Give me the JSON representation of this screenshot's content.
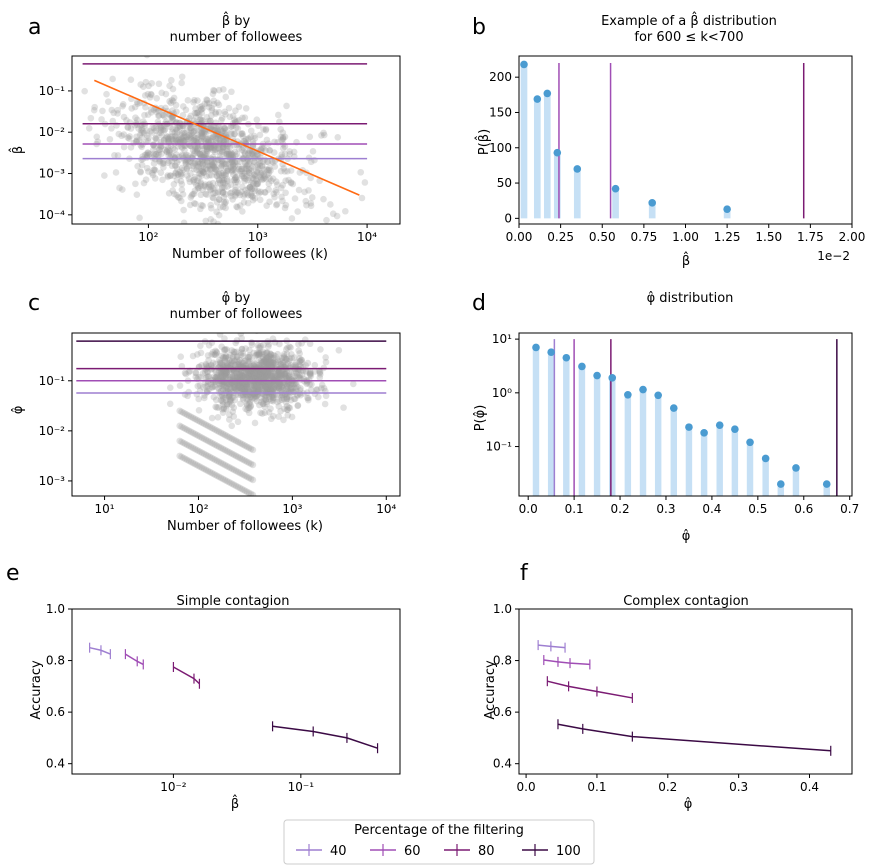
{
  "legend": {
    "title": "Percentage of the filtering",
    "entries": [
      {
        "label": "40",
        "color": "#9e7fd1"
      },
      {
        "label": "60",
        "color": "#a04eb5"
      },
      {
        "label": "80",
        "color": "#7b1b73"
      },
      {
        "label": "100",
        "color": "#3b0a45"
      }
    ]
  },
  "colors": {
    "scatter": "#9a9a9a",
    "fit": "#ff6a13",
    "bar": "#c6e0f5",
    "dot": "#4a9bd1",
    "lines": [
      "#9e7fd1",
      "#a04eb5",
      "#7b1b73",
      "#3b0a45"
    ]
  },
  "chart_data": [
    {
      "id": "a",
      "letter": "a",
      "type": "scatter",
      "title_lines": [
        "β̂ by",
        "number of followees"
      ],
      "xlabel": "Number of followees (k)",
      "ylabel": "β̂",
      "xscale": "log",
      "yscale": "log",
      "xlim": [
        20,
        20000
      ],
      "ylim": [
        6e-05,
        0.7
      ],
      "xticks": [
        {
          "v": 100,
          "label": "10²"
        },
        {
          "v": 1000,
          "label": "10³"
        },
        {
          "v": 10000,
          "label": "10⁴"
        }
      ],
      "yticks": [
        {
          "v": 0.0001,
          "label": "10⁻⁴"
        },
        {
          "v": 0.001,
          "label": "10⁻³"
        },
        {
          "v": 0.01,
          "label": "10⁻²"
        },
        {
          "v": 0.1,
          "label": "10⁻¹"
        }
      ],
      "cloud": {
        "n": 1200,
        "x_log_mean": 2.55,
        "x_log_sd": 0.42,
        "y_log_mean": -2.5,
        "y_log_sd": 0.62,
        "slope": -0.75
      },
      "fit_line": {
        "x": [
          32,
          8500
        ],
        "y": [
          0.18,
          0.0003
        ]
      },
      "hlines": [
        {
          "y": 0.45,
          "x": [
            25,
            10000
          ],
          "color_index": 2
        },
        {
          "y": 0.016,
          "x": [
            25,
            10000
          ],
          "color_index": 2
        },
        {
          "y": 0.0052,
          "x": [
            25,
            10000
          ],
          "color_index": 1
        },
        {
          "y": 0.0023,
          "x": [
            25,
            10000
          ],
          "color_index": 0
        }
      ]
    },
    {
      "id": "b",
      "letter": "b",
      "type": "bar",
      "title_lines": [
        "Example of a β̂ distribution",
        "for 600 ≤ k<700"
      ],
      "xlabel": "β̂",
      "ylabel": "P(β̂)",
      "xlim": [
        0,
        0.02
      ],
      "ylim": [
        -8,
        230
      ],
      "offset_label": "1e−2",
      "xticks": [
        {
          "v": 0,
          "label": "0.00"
        },
        {
          "v": 0.0025,
          "label": "0.25"
        },
        {
          "v": 0.005,
          "label": "0.50"
        },
        {
          "v": 0.0075,
          "label": "0.75"
        },
        {
          "v": 0.01,
          "label": "1.00"
        },
        {
          "v": 0.0125,
          "label": "1.25"
        },
        {
          "v": 0.015,
          "label": "1.50"
        },
        {
          "v": 0.0175,
          "label": "1.75"
        },
        {
          "v": 0.02,
          "label": "2.00"
        }
      ],
      "yticks": [
        {
          "v": 0,
          "label": "0"
        },
        {
          "v": 50,
          "label": "50"
        },
        {
          "v": 100,
          "label": "100"
        },
        {
          "v": 150,
          "label": "150"
        },
        {
          "v": 200,
          "label": "200"
        }
      ],
      "bar_width": 0.0004,
      "points": [
        {
          "x": 0.0003,
          "y": 218
        },
        {
          "x": 0.0011,
          "y": 169
        },
        {
          "x": 0.0017,
          "y": 177
        },
        {
          "x": 0.0023,
          "y": 93
        },
        {
          "x": 0.0035,
          "y": 70
        },
        {
          "x": 0.0058,
          "y": 42
        },
        {
          "x": 0.008,
          "y": 22
        },
        {
          "x": 0.0125,
          "y": 13
        }
      ],
      "vlines": [
        {
          "x": 0.0024,
          "y": [
            0,
            220
          ],
          "color_index": 1
        },
        {
          "x": 0.0055,
          "y": [
            0,
            220
          ],
          "color_index": 1
        },
        {
          "x": 0.0171,
          "y": [
            0,
            220
          ],
          "color_index": 2
        }
      ]
    },
    {
      "id": "c",
      "letter": "c",
      "type": "scatter",
      "title_lines": [
        "φ̂ by",
        "number of followees"
      ],
      "xlabel": "Number of followees (k)",
      "ylabel": "φ̂",
      "xscale": "log",
      "yscale": "log",
      "xlim": [
        4.5,
        14000
      ],
      "ylim": [
        0.0005,
        0.9
      ],
      "xticks": [
        {
          "v": 10,
          "label": "10¹"
        },
        {
          "v": 100,
          "label": "10²"
        },
        {
          "v": 1000,
          "label": "10³"
        },
        {
          "v": 10000,
          "label": "10⁴"
        }
      ],
      "yticks": [
        {
          "v": 0.001,
          "label": "10⁻³"
        },
        {
          "v": 0.01,
          "label": "10⁻²"
        },
        {
          "v": 0.1,
          "label": "10⁻¹"
        }
      ],
      "cloud": {
        "n": 1200,
        "x_log_mean": 2.6,
        "x_log_sd": 0.3,
        "y_log_mean": -0.95,
        "y_log_sd": 0.3,
        "slope": 0
      },
      "hlines": [
        {
          "y": 0.62,
          "x": [
            5,
            10000
          ],
          "color_index": 3
        },
        {
          "y": 0.175,
          "x": [
            5,
            10000
          ],
          "color_index": 2
        },
        {
          "y": 0.1,
          "x": [
            5,
            10000
          ],
          "color_index": 1
        },
        {
          "y": 0.057,
          "x": [
            5,
            10000
          ],
          "color_index": 0
        }
      ]
    },
    {
      "id": "d",
      "letter": "d",
      "type": "bar",
      "title_lines": [
        "φ̂ distribution"
      ],
      "xlabel": "φ̂",
      "ylabel": "P(φ̂)",
      "yscale": "log",
      "xlim": [
        -0.02,
        0.705
      ],
      "ylim": [
        0.012,
        13
      ],
      "xticks": [
        {
          "v": 0,
          "label": "0.0"
        },
        {
          "v": 0.1,
          "label": "0.1"
        },
        {
          "v": 0.2,
          "label": "0.2"
        },
        {
          "v": 0.3,
          "label": "0.3"
        },
        {
          "v": 0.4,
          "label": "0.4"
        },
        {
          "v": 0.5,
          "label": "0.5"
        },
        {
          "v": 0.6,
          "label": "0.6"
        },
        {
          "v": 0.7,
          "label": "0.7"
        }
      ],
      "yticks": [
        {
          "v": 0.1,
          "label": "10⁻¹"
        },
        {
          "v": 1,
          "label": "10⁰"
        },
        {
          "v": 10,
          "label": "10¹"
        }
      ],
      "bar_width": 0.014,
      "points": [
        {
          "x": 0.017,
          "y": 7
        },
        {
          "x": 0.05,
          "y": 5.7
        },
        {
          "x": 0.083,
          "y": 4.5
        },
        {
          "x": 0.117,
          "y": 3.1
        },
        {
          "x": 0.15,
          "y": 2.1
        },
        {
          "x": 0.183,
          "y": 1.9
        },
        {
          "x": 0.217,
          "y": 0.92
        },
        {
          "x": 0.25,
          "y": 1.15
        },
        {
          "x": 0.283,
          "y": 0.9
        },
        {
          "x": 0.317,
          "y": 0.52
        },
        {
          "x": 0.35,
          "y": 0.23
        },
        {
          "x": 0.383,
          "y": 0.18
        },
        {
          "x": 0.417,
          "y": 0.25
        },
        {
          "x": 0.45,
          "y": 0.21
        },
        {
          "x": 0.483,
          "y": 0.12
        },
        {
          "x": 0.517,
          "y": 0.06
        },
        {
          "x": 0.55,
          "y": 0.02
        },
        {
          "x": 0.583,
          "y": 0.04
        },
        {
          "x": 0.65,
          "y": 0.02
        }
      ],
      "vlines": [
        {
          "x": 0.057,
          "y": [
            0.012,
            10
          ],
          "color_index": 0
        },
        {
          "x": 0.1,
          "y": [
            0.012,
            10
          ],
          "color_index": 1
        },
        {
          "x": 0.18,
          "y": [
            0.012,
            10
          ],
          "color_index": 2
        },
        {
          "x": 0.672,
          "y": [
            0.012,
            10
          ],
          "color_index": 3
        }
      ]
    },
    {
      "id": "e",
      "letter": "e",
      "type": "line",
      "title_lines": [
        "Simple contagion"
      ],
      "xlabel": "β̂",
      "ylabel": "Accuracy",
      "xscale": "log",
      "xlim": [
        0.0016,
        0.6
      ],
      "ylim": [
        0.36,
        1.0
      ],
      "xticks": [
        {
          "v": 0.01,
          "label": "10⁻²"
        },
        {
          "v": 0.1,
          "label": "10⁻¹"
        }
      ],
      "yticks": [
        {
          "v": 0.4,
          "label": "0.4"
        },
        {
          "v": 0.6,
          "label": "0.6"
        },
        {
          "v": 0.8,
          "label": "0.8"
        },
        {
          "v": 1.0,
          "label": "1.0"
        }
      ],
      "series": [
        {
          "name": "40",
          "color_index": 0,
          "x": [
            0.0022,
            0.0027,
            0.0032
          ],
          "y": [
            0.85,
            0.84,
            0.825
          ]
        },
        {
          "name": "60",
          "color_index": 1,
          "x": [
            0.0042,
            0.0052,
            0.0058
          ],
          "y": [
            0.825,
            0.797,
            0.785
          ]
        },
        {
          "name": "80",
          "color_index": 2,
          "x": [
            0.01,
            0.0145,
            0.016
          ],
          "y": [
            0.775,
            0.73,
            0.71
          ]
        },
        {
          "name": "100",
          "color_index": 3,
          "x": [
            0.06,
            0.125,
            0.23,
            0.4
          ],
          "y": [
            0.545,
            0.525,
            0.5,
            0.46
          ]
        }
      ]
    },
    {
      "id": "f",
      "letter": "f",
      "type": "line",
      "title_lines": [
        "Complex contagion"
      ],
      "xlabel": "φ̂",
      "ylabel": "Accuracy",
      "xlim": [
        -0.01,
        0.46
      ],
      "ylim": [
        0.36,
        1.0
      ],
      "xticks": [
        {
          "v": 0,
          "label": "0.0"
        },
        {
          "v": 0.1,
          "label": "0.1"
        },
        {
          "v": 0.2,
          "label": "0.2"
        },
        {
          "v": 0.3,
          "label": "0.3"
        },
        {
          "v": 0.4,
          "label": "0.4"
        }
      ],
      "yticks": [
        {
          "v": 0.4,
          "label": "0.4"
        },
        {
          "v": 0.6,
          "label": "0.6"
        },
        {
          "v": 0.8,
          "label": "0.8"
        },
        {
          "v": 1.0,
          "label": "1.0"
        }
      ],
      "series": [
        {
          "name": "40",
          "color_index": 0,
          "x": [
            0.017,
            0.035,
            0.055
          ],
          "y": [
            0.86,
            0.855,
            0.85
          ]
        },
        {
          "name": "60",
          "color_index": 1,
          "x": [
            0.025,
            0.045,
            0.062,
            0.09
          ],
          "y": [
            0.802,
            0.795,
            0.79,
            0.785
          ]
        },
        {
          "name": "80",
          "color_index": 2,
          "x": [
            0.03,
            0.06,
            0.1,
            0.15
          ],
          "y": [
            0.72,
            0.7,
            0.68,
            0.655
          ]
        },
        {
          "name": "100",
          "color_index": 3,
          "x": [
            0.045,
            0.08,
            0.15,
            0.43
          ],
          "y": [
            0.553,
            0.535,
            0.505,
            0.45
          ]
        }
      ]
    }
  ]
}
